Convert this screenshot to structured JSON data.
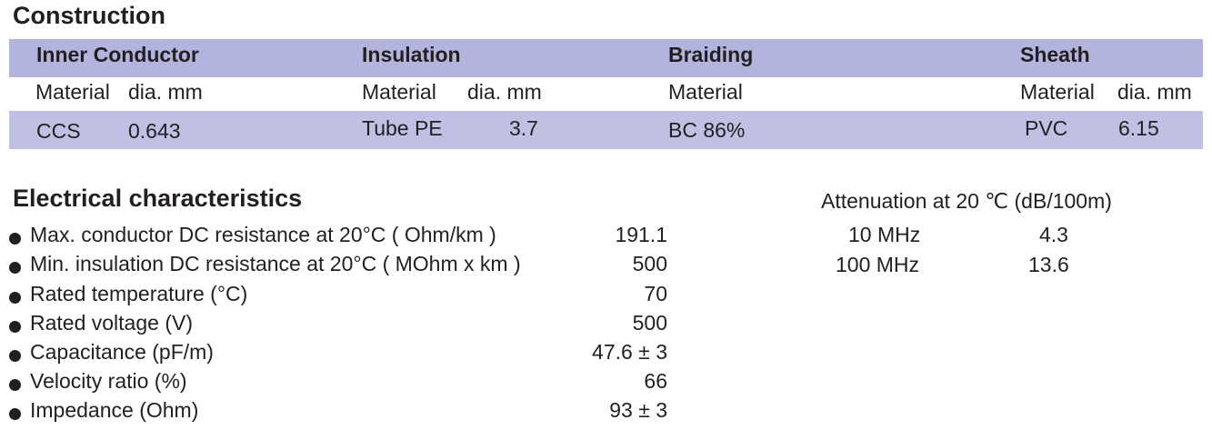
{
  "construction": {
    "title": "Construction",
    "columns": [
      {
        "header": "Inner Conductor",
        "subheaders": [
          "Material",
          "dia. mm"
        ],
        "values": [
          "CCS",
          "0.643"
        ]
      },
      {
        "header": "Insulation",
        "subheaders": [
          "Material",
          "dia. mm"
        ],
        "values": [
          "Tube PE",
          "3.7"
        ]
      },
      {
        "header": "Braiding",
        "subheaders": [
          "Material"
        ],
        "values": [
          "BC 86%"
        ]
      },
      {
        "header": "Sheath",
        "subheaders": [
          "Material",
          "dia. mm"
        ],
        "values": [
          "PVC",
          "6.15"
        ]
      }
    ]
  },
  "electrical": {
    "title": "Electrical characteristics",
    "items": [
      {
        "label": "Max. conductor DC resistance at 20°C ( Ohm/km )",
        "value": "191.1"
      },
      {
        "label": "Min. insulation DC resistance at  20°C ( MOhm x km )",
        "value": "500"
      },
      {
        "label": "Rated temperature (°C)",
        "value": "70"
      },
      {
        "label": "Rated voltage (V)",
        "value": "500"
      },
      {
        "label": "Capacitance (pF/m)",
        "value": "47.6 ± 3"
      },
      {
        "label": "Velocity ratio (%)",
        "value": "66"
      },
      {
        "label": "Impedance (Ohm)",
        "value": "93 ± 3"
      }
    ]
  },
  "attenuation": {
    "title": "Attenuation at 20 ℃ (dB/100m)",
    "rows": [
      {
        "frequency": "10 MHz",
        "value": "4.3"
      },
      {
        "frequency": "100 MHz",
        "value": "13.6"
      }
    ]
  }
}
